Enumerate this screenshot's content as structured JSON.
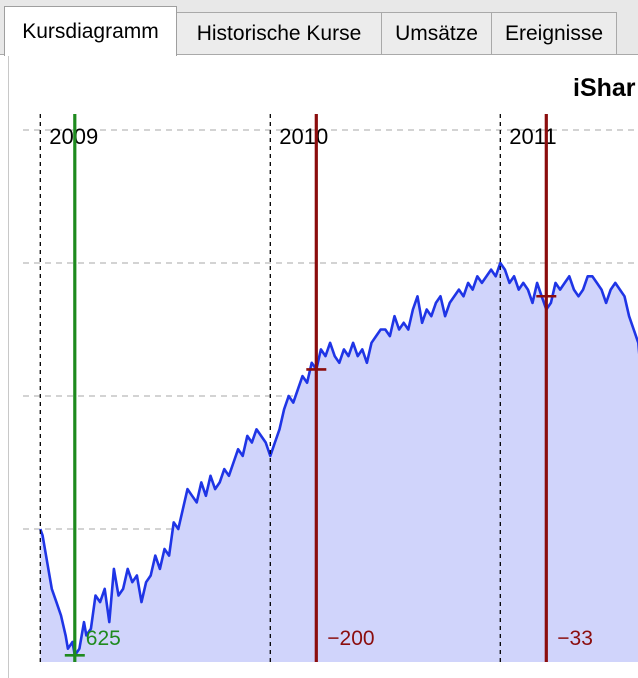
{
  "tabs": [
    {
      "label": "Kursdiagramm",
      "active": true
    },
    {
      "label": "Historische Kurse",
      "active": false
    },
    {
      "label": "Umsätze",
      "active": false
    },
    {
      "label": "Ereignisse",
      "active": false
    }
  ],
  "colors": {
    "line": "#1f35e6",
    "area": "#d0d4fb",
    "buy": "#1e8a1e",
    "sell": "#8b0d0d",
    "grid": "#b9b9b9"
  },
  "chart_data": {
    "type": "area",
    "title": "iShar",
    "x_unit": "year",
    "xlim": [
      2008.99,
      2011.64
    ],
    "ylim": [
      0,
      100
    ],
    "y_axis_labels_visible": false,
    "year_markers": [
      {
        "x": 2009.0,
        "label": "2009"
      },
      {
        "x": 2010.0,
        "label": "2010"
      },
      {
        "x": 2011.0,
        "label": "2011"
      }
    ],
    "horizontal_gridlines": [
      20,
      40,
      60,
      80,
      100
    ],
    "series": [
      {
        "x": [
          2009.0,
          2009.01,
          2009.03,
          2009.05,
          2009.07,
          2009.09,
          2009.11,
          2009.12,
          2009.14,
          2009.15,
          2009.17,
          2009.19,
          2009.2,
          2009.22,
          2009.24,
          2009.26,
          2009.28,
          2009.3,
          2009.32,
          2009.34,
          2009.36,
          2009.38,
          2009.4,
          2009.42,
          2009.44,
          2009.46,
          2009.48,
          2009.5,
          2009.52,
          2009.54,
          2009.56,
          2009.58,
          2009.6,
          2009.62,
          2009.64,
          2009.66,
          2009.68,
          2009.7,
          2009.72,
          2009.74,
          2009.76,
          2009.78,
          2009.8,
          2009.82,
          2009.84,
          2009.86,
          2009.88,
          2009.9,
          2009.92,
          2009.94,
          2009.96,
          2009.98,
          2010.0,
          2010.02,
          2010.04,
          2010.06,
          2010.08,
          2010.1,
          2010.12,
          2010.14,
          2010.16,
          2010.18,
          2010.2,
          2010.22,
          2010.24,
          2010.26,
          2010.28,
          2010.3,
          2010.32,
          2010.34,
          2010.36,
          2010.38,
          2010.4,
          2010.42,
          2010.44,
          2010.46,
          2010.48,
          2010.5,
          2010.52,
          2010.54,
          2010.56,
          2010.58,
          2010.6,
          2010.62,
          2010.64,
          2010.66,
          2010.68,
          2010.7,
          2010.72,
          2010.74,
          2010.76,
          2010.78,
          2010.8,
          2010.82,
          2010.84,
          2010.86,
          2010.88,
          2010.9,
          2010.92,
          2010.94,
          2010.96,
          2010.98,
          2011.0,
          2011.02,
          2011.04,
          2011.06,
          2011.08,
          2011.1,
          2011.12,
          2011.14,
          2011.16,
          2011.18,
          2011.2,
          2011.22,
          2011.24,
          2011.26,
          2011.28,
          2011.3,
          2011.32,
          2011.34,
          2011.36,
          2011.38,
          2011.4,
          2011.42,
          2011.44,
          2011.46,
          2011.48,
          2011.5,
          2011.52,
          2011.54,
          2011.56,
          2011.58,
          2011.6,
          2011.62,
          2011.635
        ],
        "y": [
          20,
          19,
          15,
          11,
          9,
          7,
          4,
          2,
          3,
          1,
          2,
          6,
          4,
          5,
          10,
          9,
          11,
          6,
          14,
          10,
          11,
          14,
          12,
          13,
          9,
          12,
          13,
          16,
          14,
          17,
          16,
          21,
          20,
          23,
          26,
          25,
          24,
          27,
          25,
          28,
          26,
          27,
          29,
          28,
          30,
          32,
          31,
          34,
          33,
          35,
          34,
          33,
          31,
          33,
          35,
          38,
          40,
          39,
          41,
          43,
          42,
          45,
          44,
          47,
          46,
          48,
          46,
          45,
          47,
          46,
          48,
          46,
          47,
          45,
          48,
          49,
          50,
          50,
          49,
          52,
          50,
          51,
          50,
          53,
          55,
          51,
          53,
          52,
          54,
          55,
          52,
          54,
          55,
          56,
          55,
          57,
          56,
          58,
          57,
          58,
          59,
          58,
          60,
          59,
          57,
          58,
          56,
          57,
          56,
          54,
          57,
          55,
          53,
          54,
          57,
          56,
          57,
          58,
          56,
          55,
          56,
          58,
          58,
          57,
          56,
          54,
          56,
          57,
          56,
          55,
          52,
          50,
          48,
          40,
          32
        ]
      }
    ],
    "trades": [
      {
        "x": 2009.15,
        "y": 1,
        "label": "625",
        "kind": "buy"
      },
      {
        "x": 2010.2,
        "y": 44,
        "label": "−200",
        "kind": "sell"
      },
      {
        "x": 2011.2,
        "y": 55,
        "label": "−33",
        "kind": "sell"
      }
    ]
  }
}
